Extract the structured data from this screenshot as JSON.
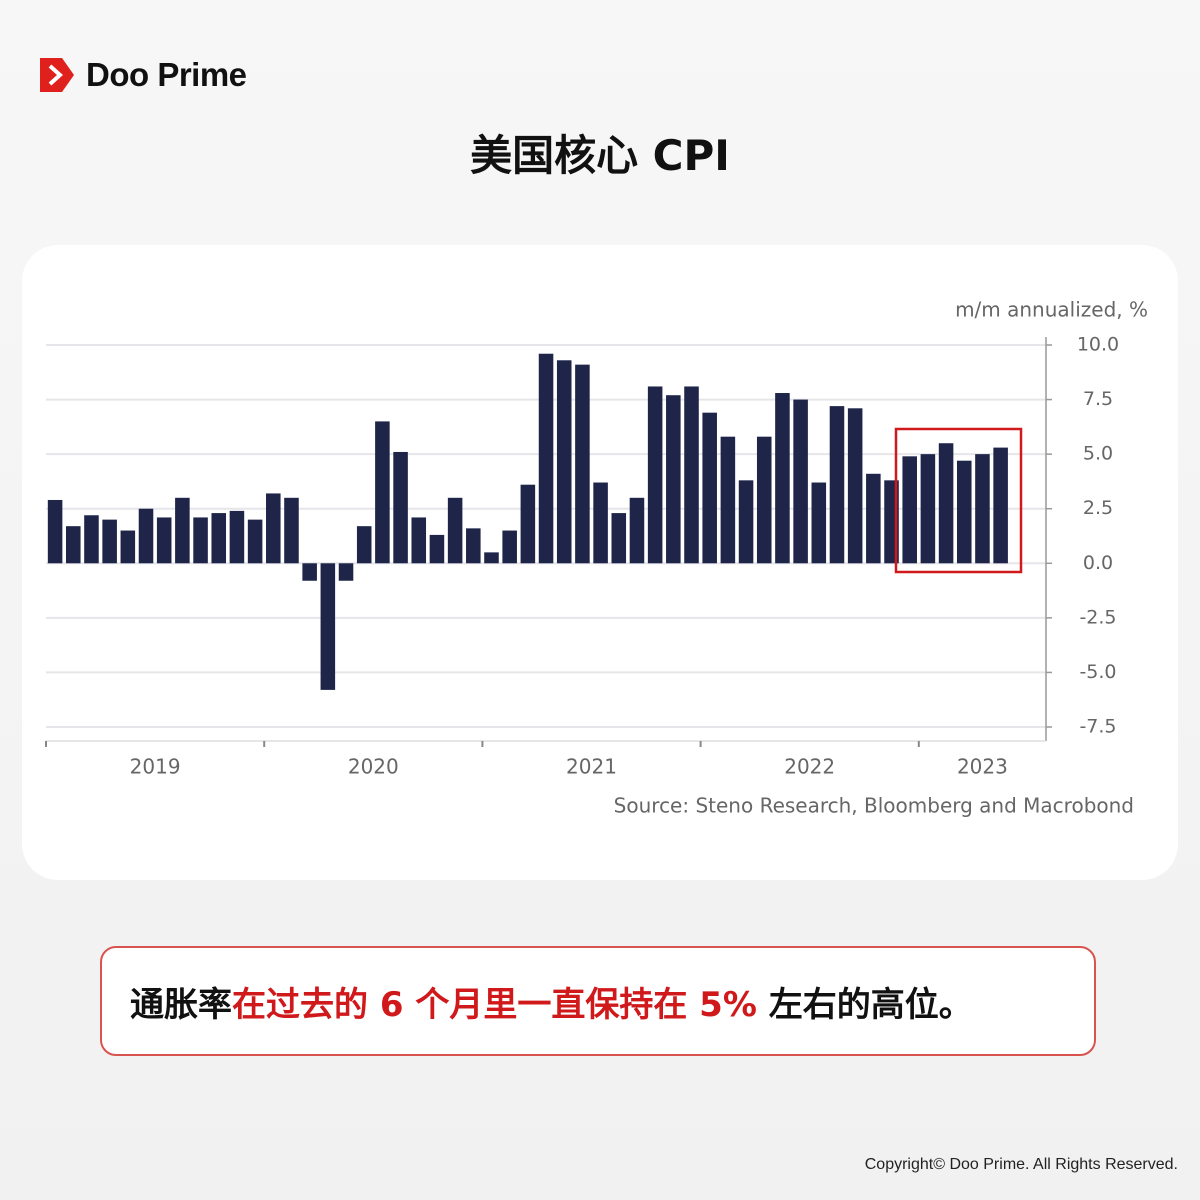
{
  "header": {
    "brand": "Doo Prime",
    "title": "美国核心 CPI"
  },
  "chart_data": {
    "type": "bar",
    "unit_label": "m/m annualized, %",
    "values": [
      2.9,
      1.7,
      2.2,
      2.0,
      1.5,
      2.5,
      2.1,
      3.0,
      2.1,
      2.3,
      2.4,
      2.0,
      3.2,
      3.0,
      -0.8,
      -5.8,
      -0.8,
      1.7,
      6.5,
      5.1,
      2.1,
      1.3,
      3.0,
      1.6,
      0.5,
      1.5,
      3.6,
      9.6,
      9.3,
      9.1,
      3.7,
      2.3,
      3.0,
      8.1,
      7.7,
      8.1,
      6.9,
      5.8,
      3.8,
      5.8,
      7.8,
      7.5,
      3.7,
      7.2,
      7.1,
      4.1,
      3.8,
      4.9,
      5.0,
      5.5,
      4.7,
      5.0,
      5.3
    ],
    "year_labels": [
      "2019",
      "2020",
      "2021",
      "2022",
      "2023"
    ],
    "color": "#1e2548",
    "ylim": [
      -7.5,
      10
    ],
    "yticks": [
      {
        "value": 10,
        "label": "10.0"
      },
      {
        "value": 7.5,
        "label": "7.5"
      },
      {
        "value": 5,
        "label": "5.0"
      },
      {
        "value": 2.5,
        "label": "2.5"
      },
      {
        "value": 0,
        "label": "0.0"
      },
      {
        "value": -2.5,
        "label": "-2.5"
      },
      {
        "value": -5,
        "label": "-5.0"
      },
      {
        "value": -7.5,
        "label": "-7.5"
      }
    ],
    "grid": true,
    "source": "Source: Steno Research, Bloomberg and Macrobond"
  },
  "callout": {
    "lead": "通胀率",
    "highlight": "在过去的 6 个月里一直保持在 5%",
    "tail": " 左右的高位。"
  },
  "footer": {
    "copyright": "Copyright© Doo Prime. All Rights Reserved."
  }
}
